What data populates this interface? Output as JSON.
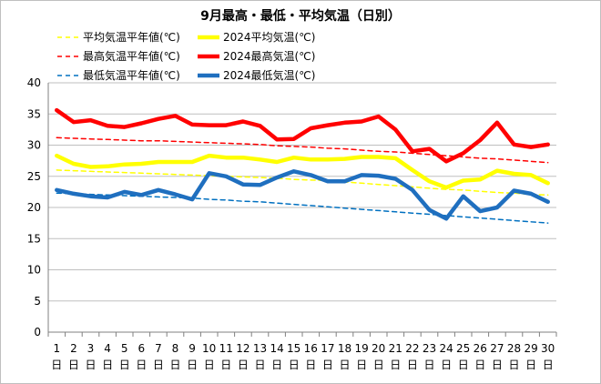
{
  "chart_data": {
    "type": "line",
    "title": "9月最高・最低・平均気温（日別）",
    "xlabel": "",
    "ylabel": "",
    "ylim": [
      0,
      40
    ],
    "yticks": [
      0,
      5,
      10,
      15,
      20,
      25,
      30,
      35,
      40
    ],
    "grid": true,
    "legend_position": "top-left",
    "categories": [
      "1",
      "2",
      "3",
      "4",
      "5",
      "6",
      "7",
      "8",
      "9",
      "10",
      "11",
      "12",
      "13",
      "14",
      "15",
      "16",
      "17",
      "18",
      "19",
      "20",
      "21",
      "22",
      "23",
      "24",
      "25",
      "26",
      "27",
      "28",
      "29",
      "30"
    ],
    "day_label": "日",
    "series": [
      {
        "name": "平均気温平年値(℃)",
        "color": "#ffff00",
        "style": "dashed",
        "values": [
          26.0,
          25.9,
          25.8,
          25.7,
          25.6,
          25.5,
          25.4,
          25.3,
          25.2,
          25.1,
          25.0,
          24.9,
          24.8,
          24.7,
          24.5,
          24.4,
          24.3,
          24.1,
          23.9,
          23.7,
          23.5,
          23.3,
          23.1,
          22.9,
          22.8,
          22.6,
          22.4,
          22.3,
          22.1,
          22.0
        ]
      },
      {
        "name": "2024平均気温(℃)",
        "color": "#ffff00",
        "style": "solid",
        "values": [
          28.3,
          27.0,
          26.5,
          26.6,
          26.9,
          27.0,
          27.3,
          27.3,
          27.3,
          28.3,
          28.0,
          28.0,
          27.7,
          27.3,
          28.0,
          27.7,
          27.7,
          27.8,
          28.1,
          28.1,
          27.9,
          26.0,
          24.2,
          23.2,
          24.3,
          24.5,
          25.9,
          25.4,
          25.2,
          23.9
        ]
      },
      {
        "name": "最高気温平年値(℃)",
        "color": "#ff0000",
        "style": "dashed",
        "values": [
          31.2,
          31.1,
          31.0,
          30.9,
          30.8,
          30.7,
          30.7,
          30.6,
          30.5,
          30.4,
          30.3,
          30.2,
          30.1,
          29.9,
          29.8,
          29.7,
          29.5,
          29.4,
          29.2,
          29.0,
          28.9,
          28.7,
          28.5,
          28.3,
          28.1,
          27.9,
          27.8,
          27.6,
          27.4,
          27.2
        ]
      },
      {
        "name": "2024最高気温(℃)",
        "color": "#ff0000",
        "style": "solid",
        "values": [
          35.6,
          33.7,
          34.0,
          33.1,
          32.9,
          33.5,
          34.2,
          34.7,
          33.3,
          33.2,
          33.2,
          33.8,
          33.1,
          30.9,
          31.0,
          32.7,
          33.2,
          33.6,
          33.8,
          34.6,
          32.5,
          29.0,
          29.4,
          27.4,
          28.7,
          30.8,
          33.6,
          30.1,
          29.7,
          30.1
        ]
      },
      {
        "name": "最低気温平年値(℃)",
        "color": "#0070c0",
        "style": "dashed",
        "values": [
          22.3,
          22.2,
          22.1,
          22.0,
          21.9,
          21.8,
          21.7,
          21.6,
          21.5,
          21.3,
          21.2,
          21.0,
          20.9,
          20.7,
          20.5,
          20.3,
          20.1,
          19.9,
          19.7,
          19.5,
          19.3,
          19.1,
          18.9,
          18.7,
          18.5,
          18.3,
          18.1,
          17.9,
          17.7,
          17.5
        ]
      },
      {
        "name": "2024最低気温(℃)",
        "color": "#1f6fbf",
        "style": "solid",
        "values": [
          22.8,
          22.2,
          21.8,
          21.6,
          22.5,
          22.0,
          22.8,
          22.1,
          21.3,
          25.5,
          25.0,
          23.7,
          23.6,
          24.8,
          25.8,
          25.2,
          24.2,
          24.2,
          25.2,
          25.1,
          24.6,
          22.8,
          19.6,
          18.2,
          21.8,
          19.4,
          20.0,
          22.7,
          22.2,
          20.9
        ]
      }
    ]
  }
}
